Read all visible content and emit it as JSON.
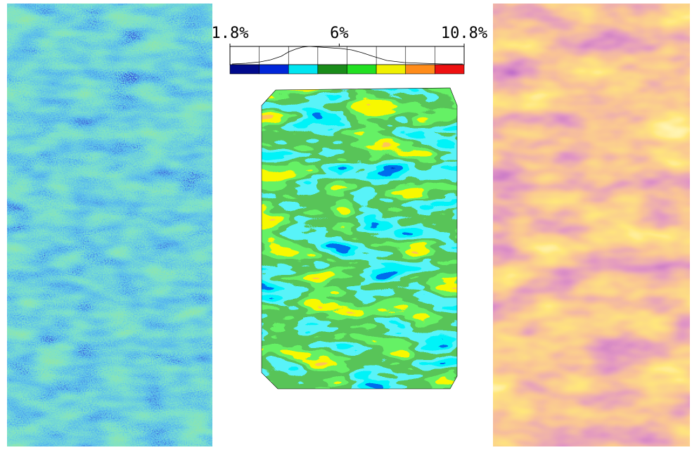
{
  "colorbar": {
    "range": [
      1.8,
      10.8
    ],
    "ticks": [
      {
        "value": 1.8,
        "label": "1.8%"
      },
      {
        "value": 6,
        "label": "6%"
      },
      {
        "value": 10.8,
        "label": "10.8%"
      }
    ],
    "colors": [
      "#000a8c",
      "#0026d9",
      "#00e5f0",
      "#1a8c1a",
      "#22e022",
      "#f0f000",
      "#ff8c1a",
      "#ee1111"
    ]
  }
}
